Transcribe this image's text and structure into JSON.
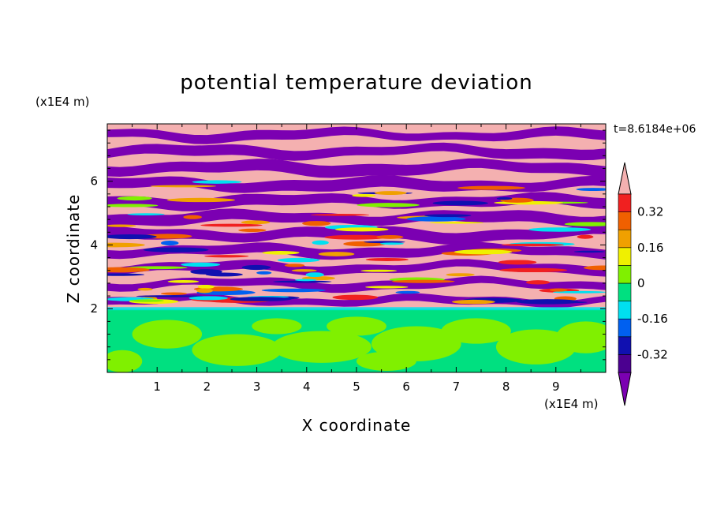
{
  "chart_data": {
    "type": "heatmap",
    "title": "potential temperature deviation",
    "xlabel": "X coordinate",
    "ylabel": "Z coordinate",
    "x_unit": "(x1E4 m)",
    "y_unit": "(x1E4 m)",
    "time_label": "t=8.6184e+06",
    "xlim": [
      0,
      10
    ],
    "ylim": [
      0,
      7.8
    ],
    "x_ticks": [
      "1",
      "2",
      "3",
      "4",
      "5",
      "6",
      "7",
      "8",
      "9"
    ],
    "y_ticks": [
      "2",
      "4",
      "6"
    ],
    "colorbar": {
      "colors": [
        "#7b00b2",
        "#4b0090",
        "#1010b0",
        "#0060f0",
        "#00e0f0",
        "#00e080",
        "#80f000",
        "#f0f000",
        "#f0a000",
        "#f06000",
        "#f02020",
        "#f4b0b0"
      ],
      "labels": [
        "0.32",
        "0.16",
        "0",
        "-0.16",
        "-0.32"
      ],
      "label_values": [
        0.32,
        0.16,
        0,
        -0.16,
        -0.32
      ],
      "extend": "both",
      "range": [
        -0.4,
        0.4
      ],
      "step": 0.08
    },
    "field_description": {
      "lower_region_z_max": 2.0,
      "lower_region_values": [
        0.0,
        0.04
      ],
      "upper_region_bands": "alternating positive (above 0.4) and negative (below -0.4) horizontal bands"
    }
  }
}
